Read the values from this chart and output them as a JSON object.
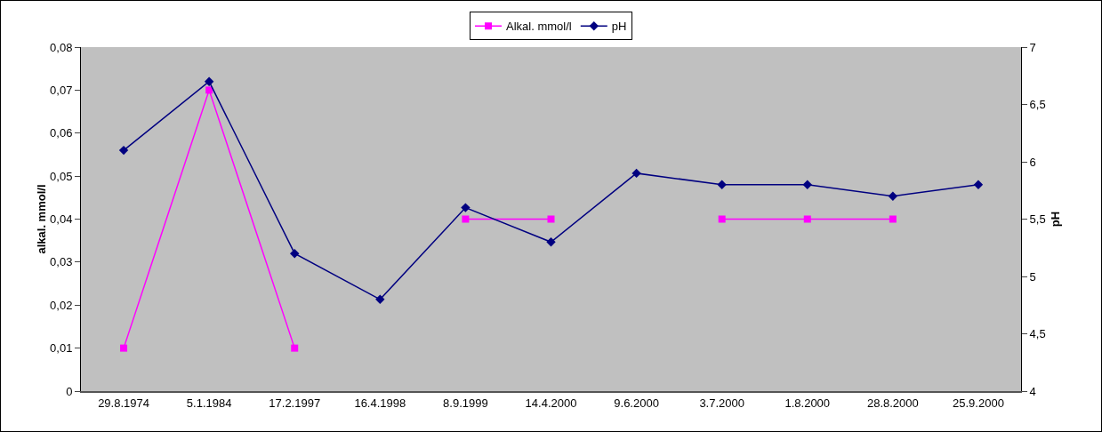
{
  "chart_data": {
    "type": "line",
    "categories": [
      "29.8.1974",
      "5.1.1984",
      "17.2.1997",
      "16.4.1998",
      "8.9.1999",
      "14.4.2000",
      "9.6.2000",
      "3.7.2000",
      "1.8.2000",
      "28.8.2000",
      "25.9.2000"
    ],
    "series": [
      {
        "name": "Alkal. mmol/l",
        "color": "#ff00ff",
        "marker": "square",
        "values": [
          0.01,
          0.07,
          0.01,
          null,
          0.04,
          0.04,
          null,
          0.04,
          0.04,
          0.04,
          null
        ]
      },
      {
        "name": "pH",
        "color": "#000080",
        "marker": "diamond",
        "axis": "y2",
        "values": [
          6.1,
          6.7,
          5.2,
          4.8,
          5.6,
          5.3,
          5.9,
          5.8,
          5.8,
          5.7,
          5.8
        ]
      }
    ],
    "ylabel": "alkal. mmol/l",
    "y2label": "pH",
    "ylim": [
      0,
      0.08
    ],
    "yticks": [
      {
        "value": 0,
        "label": "0"
      },
      {
        "value": 0.01,
        "label": "0,01"
      },
      {
        "value": 0.02,
        "label": "0,02"
      },
      {
        "value": 0.03,
        "label": "0,03"
      },
      {
        "value": 0.04,
        "label": "0,04"
      },
      {
        "value": 0.05,
        "label": "0,05"
      },
      {
        "value": 0.06,
        "label": "0,06"
      },
      {
        "value": 0.07,
        "label": "0,07"
      },
      {
        "value": 0.08,
        "label": "0,08"
      }
    ],
    "y2lim": [
      4,
      7
    ],
    "y2ticks": [
      4,
      {
        "value": 4.5,
        "label": "4,5"
      },
      5,
      {
        "value": 5.5,
        "label": "5,5"
      },
      6,
      {
        "value": 6.5,
        "label": "6,5"
      },
      7
    ],
    "grid": false,
    "legend": "top",
    "line_style": "solid"
  }
}
